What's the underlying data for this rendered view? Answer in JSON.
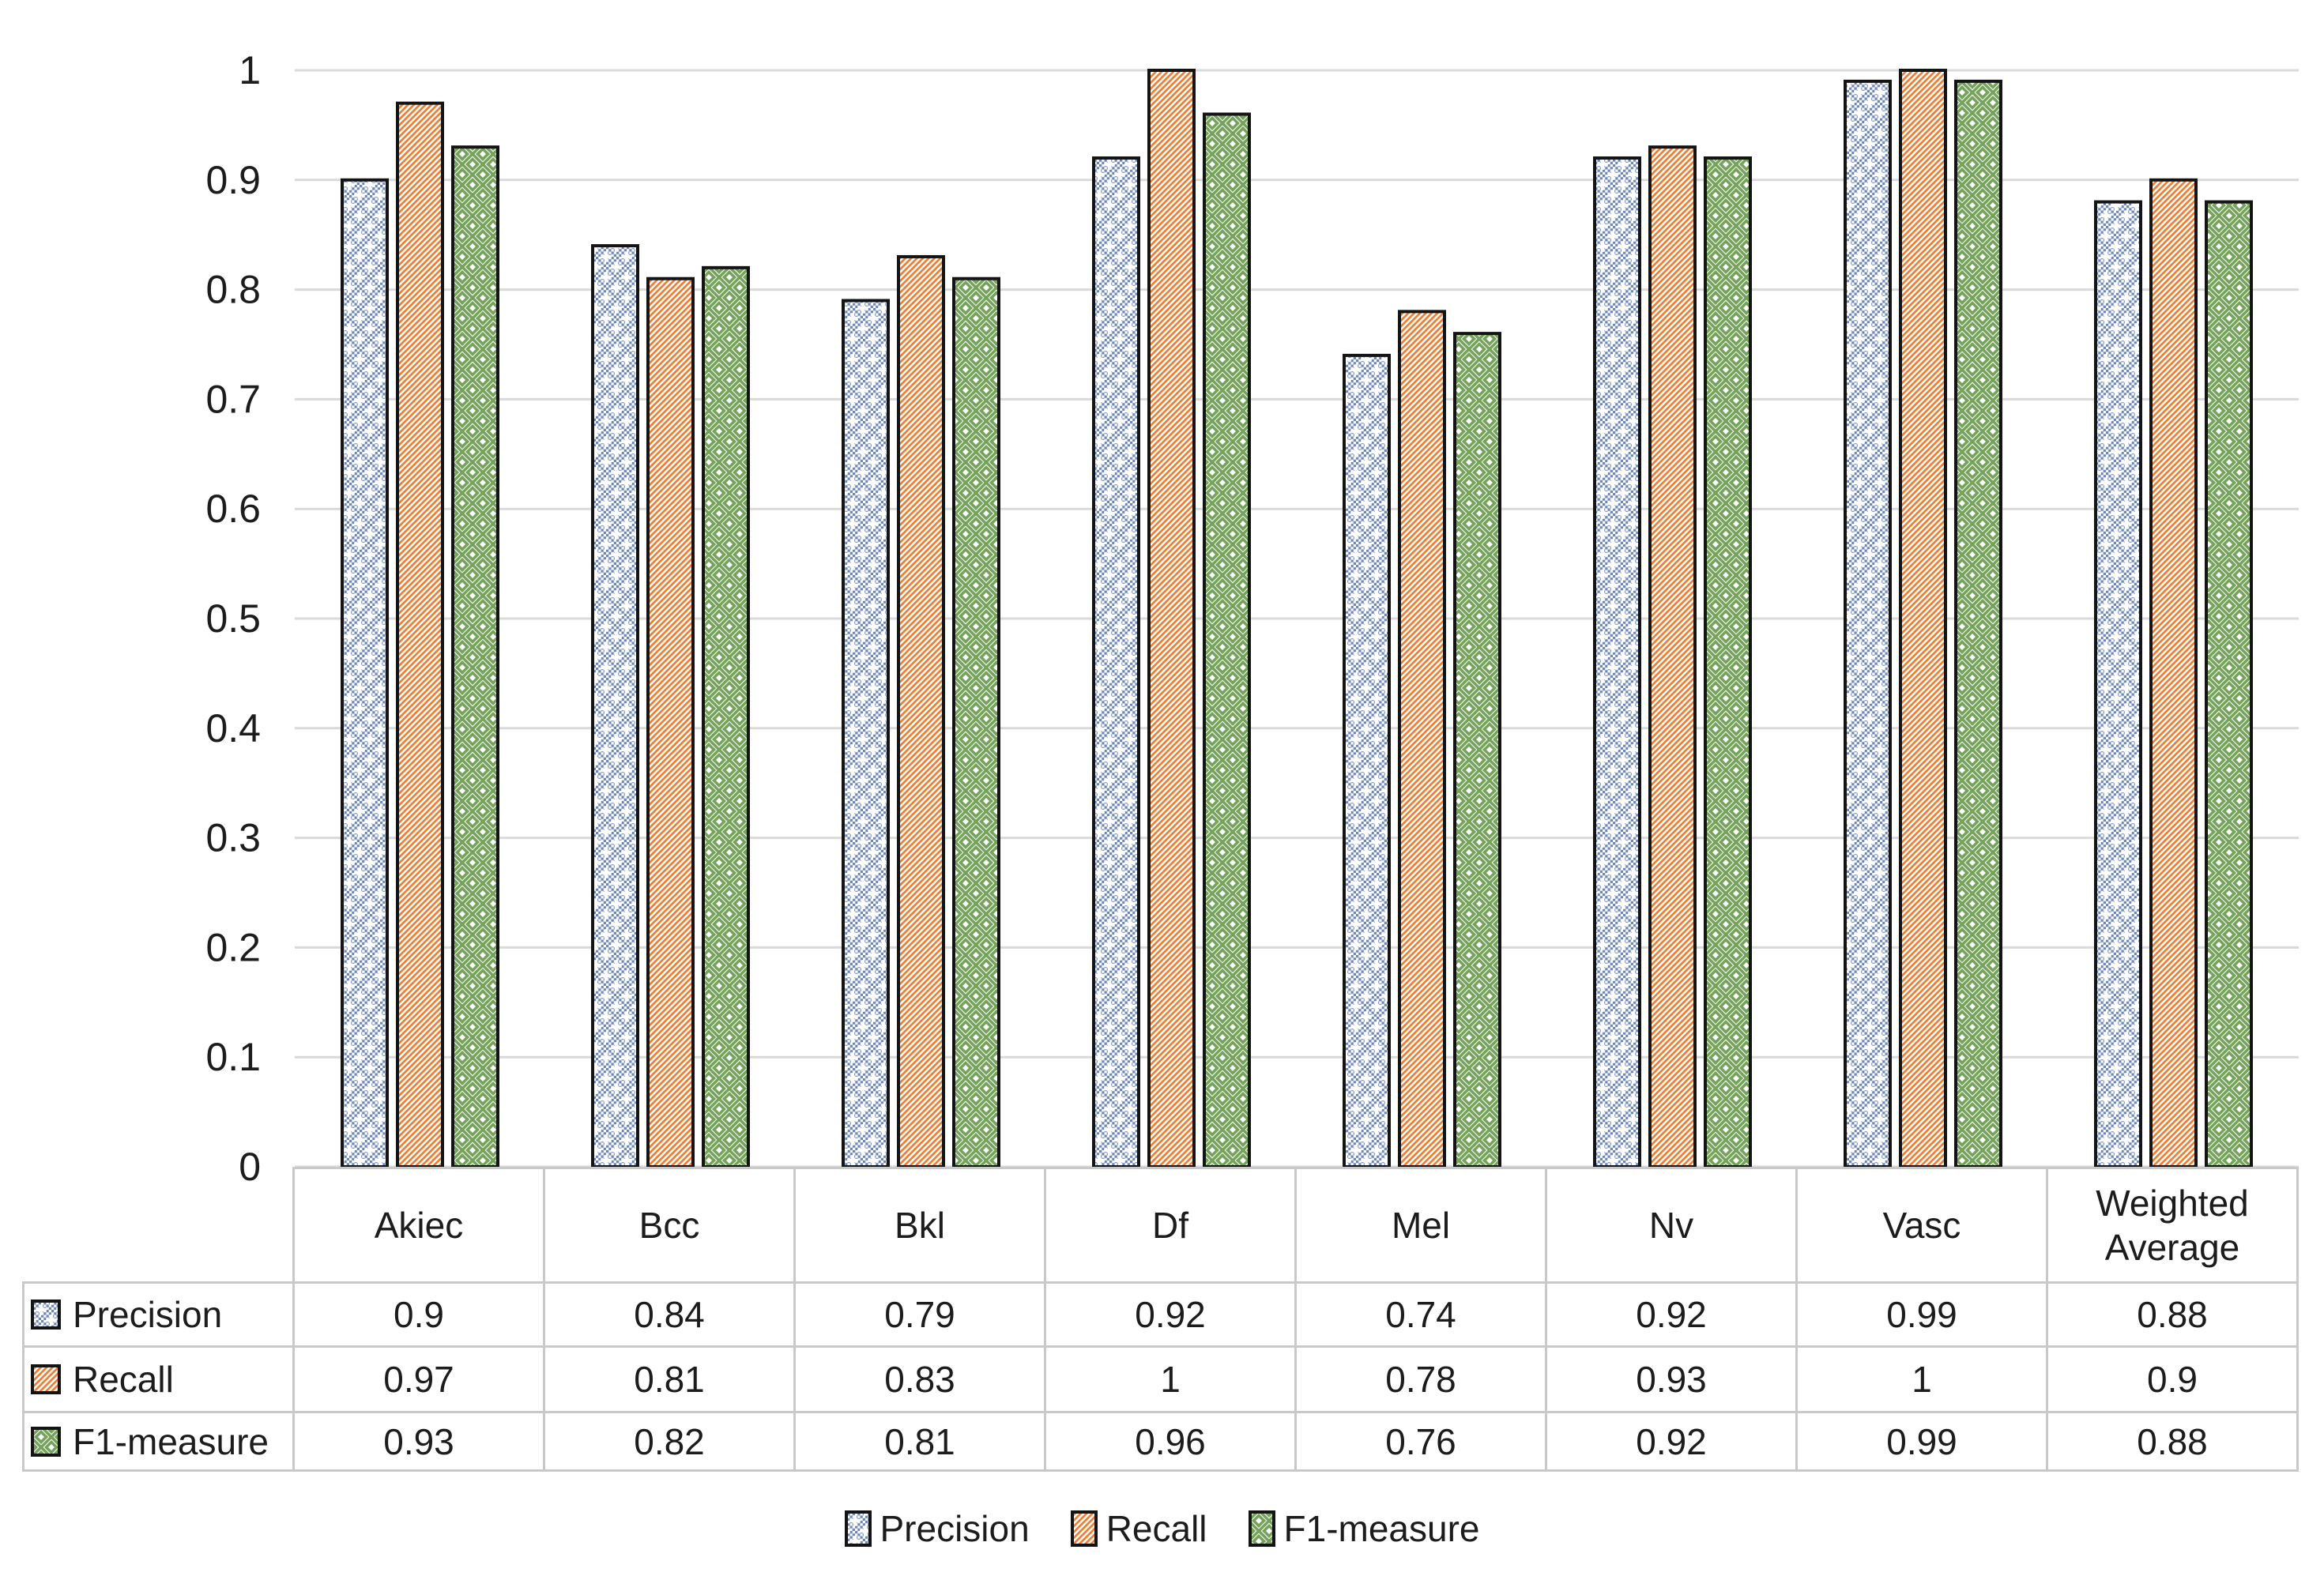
{
  "chart_data": {
    "type": "bar",
    "title": "",
    "xlabel": "",
    "ylabel": "",
    "categories": [
      "Akiec",
      "Bcc",
      "Bkl",
      "Df",
      "Mel",
      "Nv",
      "Vasc",
      "Weighted Average"
    ],
    "series": [
      {
        "name": "Precision",
        "color": "#6d87ba",
        "pattern": "dotted-grid",
        "values": [
          0.9,
          0.84,
          0.79,
          0.92,
          0.74,
          0.92,
          0.99,
          0.88
        ]
      },
      {
        "name": "Recall",
        "color": "#ed7d31",
        "pattern": "diagonal-stripes-up",
        "values": [
          0.97,
          0.81,
          0.83,
          1,
          0.78,
          0.93,
          1,
          0.9
        ]
      },
      {
        "name": "F1-measure",
        "color": "#76a35c",
        "pattern": "herringbone-weave",
        "values": [
          0.93,
          0.82,
          0.81,
          0.96,
          0.76,
          0.92,
          0.99,
          0.88
        ]
      }
    ],
    "ylim": [
      0,
      1
    ],
    "ytick_step": 0.1,
    "yticks": [
      "0",
      "0.1",
      "0.2",
      "0.3",
      "0.4",
      "0.5",
      "0.6",
      "0.7",
      "0.8",
      "0.9",
      "1"
    ],
    "grid": true,
    "grid_color": "#d9d9d9",
    "bar_outline_color": "#141414",
    "table_border_color": "#c9c9c9",
    "legend_position": "bottom",
    "data_table_shown": true
  }
}
